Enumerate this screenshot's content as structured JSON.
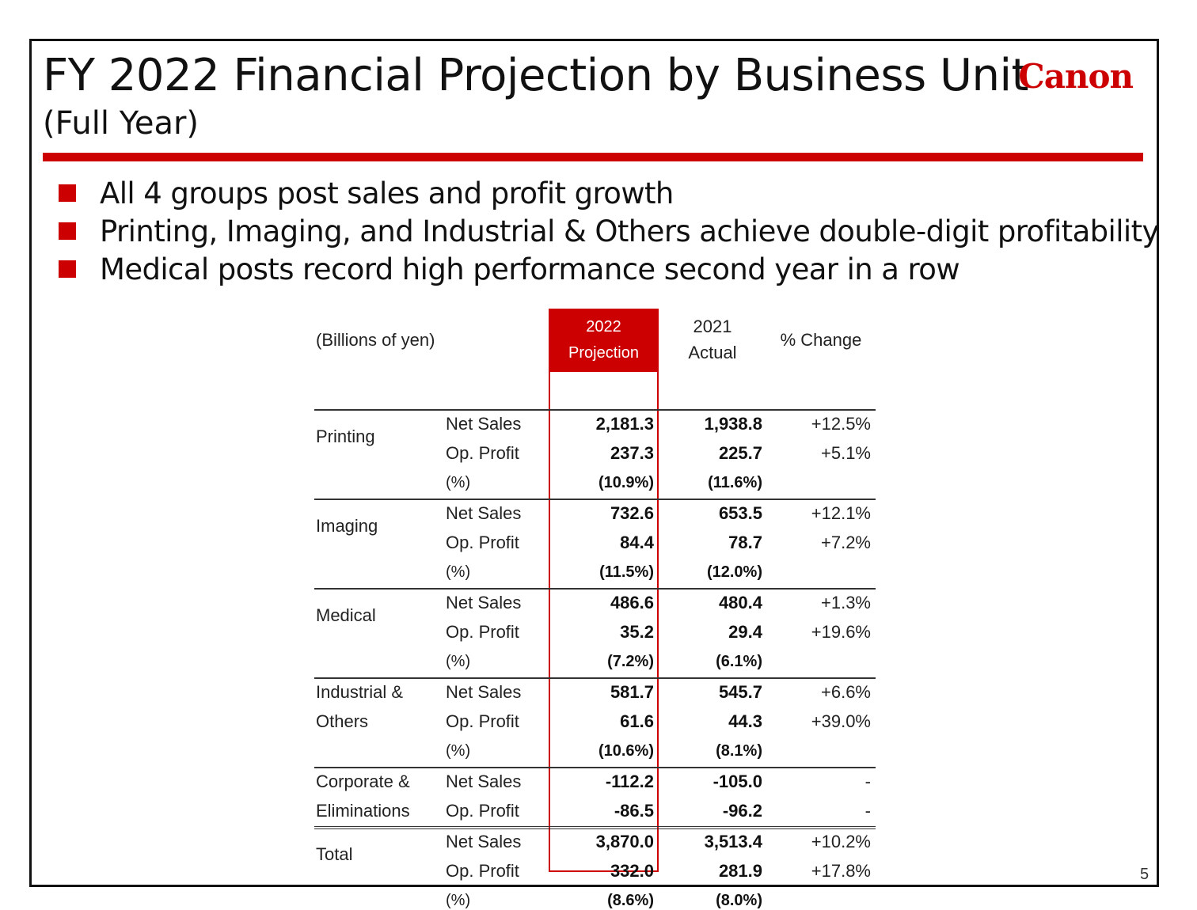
{
  "title": "FY 2022 Financial Projection by Business Unit",
  "subtitle": "(Full Year)",
  "logo": "Canon",
  "colors": {
    "accent": "#cc0000",
    "text": "#111111"
  },
  "bullets": [
    "All 4 groups post sales and profit growth",
    "Printing, Imaging, and Industrial & Others achieve double-digit profitability",
    "Medical posts record high performance second year in a row"
  ],
  "table": {
    "unit_label": "(Billions of yen)",
    "col_proj": [
      "2022",
      "Projection"
    ],
    "col_actual": [
      "2021",
      "Actual"
    ],
    "col_change": "% Change",
    "groups": [
      {
        "name": [
          "Printing"
        ],
        "rows": [
          {
            "metric": "Net Sales",
            "proj": "2,181.3",
            "actual": "1,938.8",
            "change": "+12.5%"
          },
          {
            "metric": "Op. Profit",
            "proj": "237.3",
            "actual": "225.7",
            "change": "+5.1%"
          },
          {
            "metric": "(%)",
            "proj": "(10.9%)",
            "actual": "(11.6%)",
            "change": ""
          }
        ]
      },
      {
        "name": [
          "Imaging"
        ],
        "rows": [
          {
            "metric": "Net Sales",
            "proj": "732.6",
            "actual": "653.5",
            "change": "+12.1%"
          },
          {
            "metric": "Op. Profit",
            "proj": "84.4",
            "actual": "78.7",
            "change": "+7.2%"
          },
          {
            "metric": "(%)",
            "proj": "(11.5%)",
            "actual": "(12.0%)",
            "change": ""
          }
        ]
      },
      {
        "name": [
          "Medical"
        ],
        "rows": [
          {
            "metric": "Net Sales",
            "proj": "486.6",
            "actual": "480.4",
            "change": "+1.3%"
          },
          {
            "metric": "Op. Profit",
            "proj": "35.2",
            "actual": "29.4",
            "change": "+19.6%"
          },
          {
            "metric": "(%)",
            "proj": "(7.2%)",
            "actual": "(6.1%)",
            "change": ""
          }
        ]
      },
      {
        "name": [
          "Industrial &",
          "Others"
        ],
        "rows": [
          {
            "metric": "Net Sales",
            "proj": "581.7",
            "actual": "545.7",
            "change": "+6.6%"
          },
          {
            "metric": "Op. Profit",
            "proj": "61.6",
            "actual": "44.3",
            "change": "+39.0%"
          },
          {
            "metric": "(%)",
            "proj": "(10.6%)",
            "actual": "(8.1%)",
            "change": ""
          }
        ]
      },
      {
        "name": [
          "Corporate &",
          "Eliminations"
        ],
        "rows": [
          {
            "metric": "Net Sales",
            "proj": "-112.2",
            "actual": "-105.0",
            "change": "-"
          },
          {
            "metric": "Op. Profit",
            "proj": "-86.5",
            "actual": "-96.2",
            "change": "-"
          }
        ]
      },
      {
        "name": [
          "Total"
        ],
        "rows": [
          {
            "metric": "Net Sales",
            "proj": "3,870.0",
            "actual": "3,513.4",
            "change": "+10.2%"
          },
          {
            "metric": "Op. Profit",
            "proj": "332.0",
            "actual": "281.9",
            "change": "+17.8%"
          },
          {
            "metric": "(%)",
            "proj": "(8.6%)",
            "actual": "(8.0%)",
            "change": ""
          }
        ]
      }
    ]
  },
  "page_number": "5"
}
